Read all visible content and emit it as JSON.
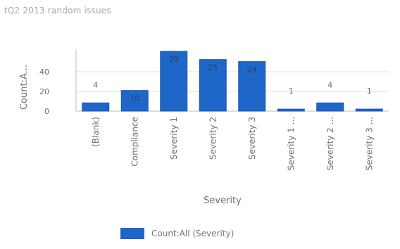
{
  "chart_data": {
    "type": "bar",
    "title": "tQ2 2013 random issues",
    "xlabel": "Severity",
    "ylabel": "Count:A...",
    "categories": [
      "(Blank)",
      "Compliance",
      "Severity 1",
      "Severity 2",
      "Severity 3",
      "Severity 1 ...",
      "Severity 2 ...",
      "Severity 3 ..."
    ],
    "series": [
      {
        "name": "Count:All (Severity)",
        "values": [
          4,
          10,
          29,
          25,
          24,
          1,
          4,
          1
        ],
        "data_labels": [
          "4",
          "10",
          "29",
          "25",
          "24",
          "1",
          "4",
          "1"
        ]
      }
    ],
    "yticks": [
      0,
      20,
      40
    ],
    "ylim": [
      0,
      30
    ],
    "grid": true,
    "legend_position": "bottom",
    "colors": {
      "bar": "#1f66c9",
      "bar_edge": "#1a56b0",
      "grid": "#e2e2e2",
      "axis": "#bdbdbd",
      "text": "#6f6f6f"
    }
  }
}
